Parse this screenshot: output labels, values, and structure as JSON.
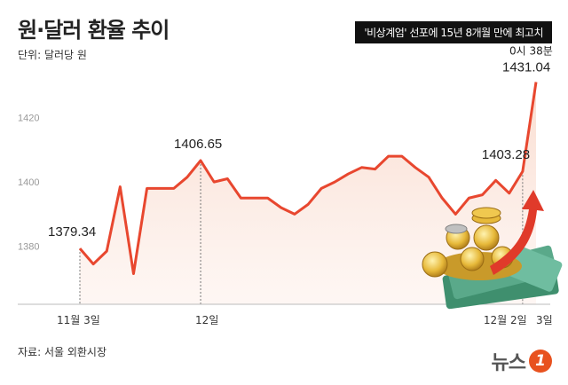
{
  "header": {
    "title": "원·달러 환율 추이",
    "unit": "단위: 달러당 원",
    "banner": "'비상계엄' 선포에 15년 8개월 만에 최고치"
  },
  "footer": {
    "source": "자료: 서울 외환시장",
    "logo_text": "뉴스",
    "logo_badge": "1"
  },
  "chart_data": {
    "type": "area",
    "title": "원·달러 환율 추이",
    "ylabel": "",
    "ylim": [
      1362,
      1440
    ],
    "yticks": [
      1380,
      1400,
      1420
    ],
    "grid": false,
    "x_tick_labels": [
      "11월 3일",
      "12일",
      "12월 2일",
      "3일"
    ],
    "note_label": "0시 38분",
    "values": [
      1379.34,
      1374.5,
      1378.5,
      1398.5,
      1371.5,
      1398,
      1398,
      1398,
      1401.5,
      1406.65,
      1400,
      1401,
      1395,
      1395,
      1395,
      1392,
      1390,
      1393,
      1398,
      1400,
      1402.5,
      1404.5,
      1404,
      1408,
      1408,
      1404.5,
      1401.5,
      1395,
      1390,
      1395,
      1396,
      1400.5,
      1396.5,
      1403.28,
      1431.04
    ],
    "data_labels": [
      {
        "index": 0,
        "text": "1379.34"
      },
      {
        "index": 9,
        "text": "1406.65"
      },
      {
        "index": 33,
        "text": "1403.28"
      },
      {
        "index": 34,
        "text": "1431.04"
      }
    ],
    "colors": {
      "line": "#e8472f",
      "fill": "#fbe6dc",
      "arrow": "#e03a2a"
    }
  }
}
